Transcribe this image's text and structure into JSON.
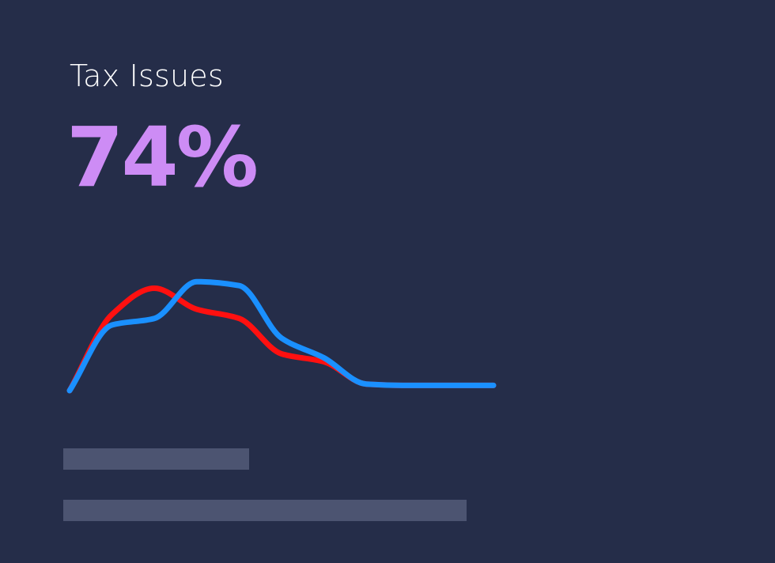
{
  "card": {
    "title": "Tax Issues",
    "value": "74%"
  },
  "colors": {
    "background": "#252d49",
    "title_text": "#ffffff",
    "value_text": "#cd8cf5",
    "placeholder_bar": "#4c5471"
  },
  "chart_data": {
    "type": "line",
    "x": [
      0,
      1,
      2,
      3,
      4,
      5,
      6,
      7,
      8,
      9,
      10
    ],
    "xlim": [
      0,
      10
    ],
    "ylim": [
      0,
      100
    ],
    "grid": false,
    "legend": "none",
    "series": [
      {
        "color": "#ff1010",
        "values": [
          0,
          58,
          78,
          62,
          55,
          28,
          22,
          5,
          4,
          4,
          4
        ]
      },
      {
        "color": "#1a90ff",
        "values": [
          0,
          50,
          55,
          83,
          80,
          40,
          25,
          5,
          4,
          4,
          4
        ]
      }
    ]
  },
  "placeholder_bars": [
    {
      "fill": 0.24
    },
    {
      "fill": 0.52
    }
  ]
}
